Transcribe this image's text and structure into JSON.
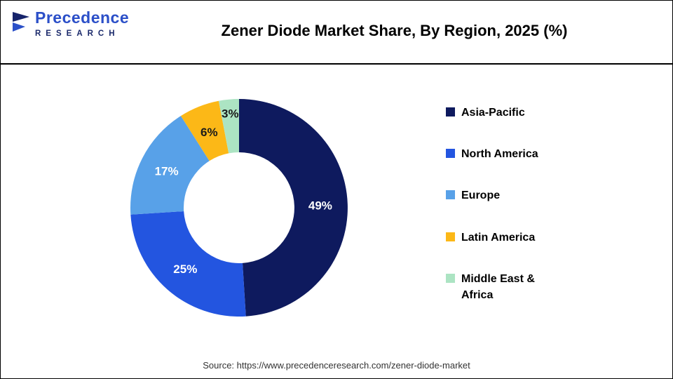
{
  "header": {
    "logo": {
      "line1": "Precedence",
      "line2": "RESEARCH"
    },
    "title": "Zener Diode Market Share, By Region, 2025 (%)"
  },
  "chart_data": {
    "type": "pie",
    "subtype": "donut",
    "title": "Zener Diode Market Share, By Region, 2025 (%)",
    "unit": "%",
    "start_angle_deg": 0,
    "direction": "clockwise",
    "legend_position": "right",
    "slices": [
      {
        "label": "Asia-Pacific",
        "value": 49,
        "label_text": "49%",
        "color": "#0e1a5e",
        "text_color": "#ffffff"
      },
      {
        "label": "North America",
        "value": 25,
        "label_text": "25%",
        "color": "#2355e0",
        "text_color": "#ffffff"
      },
      {
        "label": "Europe",
        "value": 17,
        "label_text": "17%",
        "color": "#58a1e8",
        "text_color": "#ffffff"
      },
      {
        "label": "Latin America",
        "value": 6,
        "label_text": "6%",
        "color": "#fcb817",
        "text_color": "#1a1a1a"
      },
      {
        "label": "Middle East & Africa",
        "value": 3,
        "label_text": "3%",
        "color": "#ace4c3",
        "text_color": "#1a1a1a"
      }
    ]
  },
  "footer": {
    "source": "Source: https://www.precedenceresearch.com/zener-diode-market"
  }
}
